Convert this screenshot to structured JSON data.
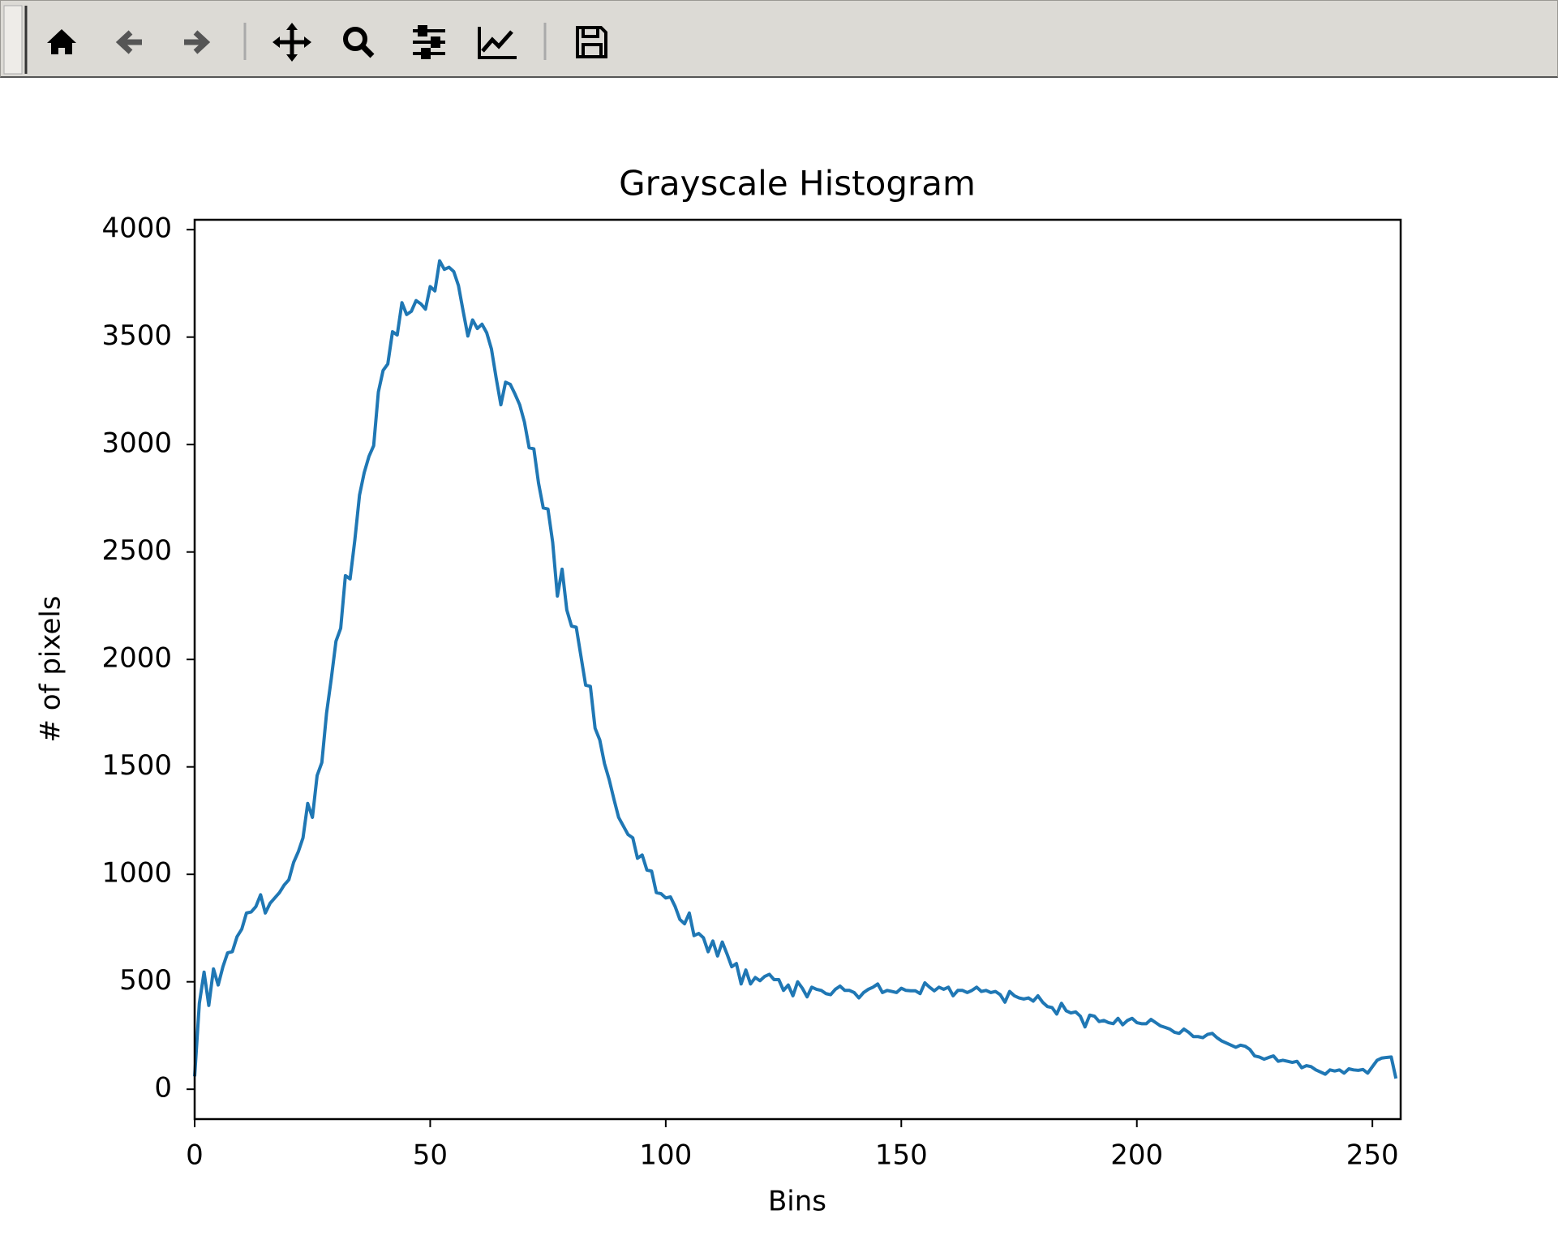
{
  "chart_data": {
    "type": "line",
    "title": "Grayscale Histogram",
    "xlabel": "Bins",
    "ylabel": "# of pixels",
    "color": "#1f77b4",
    "x": [
      0,
      1,
      2,
      3,
      4,
      5,
      6,
      7,
      8,
      9,
      10,
      11,
      12,
      13,
      14,
      15,
      16,
      17,
      18,
      19,
      20,
      21,
      22,
      23,
      24,
      25,
      26,
      27,
      28,
      29,
      30,
      31,
      32,
      33,
      34,
      35,
      36,
      37,
      38,
      39,
      40,
      41,
      42,
      43,
      44,
      45,
      46,
      47,
      48,
      49,
      50,
      51,
      52,
      53,
      54,
      55,
      56,
      57,
      58,
      59,
      60,
      61,
      62,
      63,
      64,
      65,
      66,
      67,
      68,
      69,
      70,
      71,
      72,
      73,
      74,
      75,
      76,
      77,
      78,
      79,
      80,
      81,
      82,
      83,
      84,
      85,
      86,
      87,
      88,
      89,
      90,
      91,
      92,
      93,
      94,
      95,
      96,
      97,
      98,
      99,
      100,
      101,
      102,
      103,
      104,
      105,
      106,
      107,
      108,
      109,
      110,
      111,
      112,
      113,
      114,
      115,
      116,
      117,
      118,
      119,
      120,
      121,
      122,
      123,
      124,
      125,
      126,
      127,
      128,
      129,
      130,
      131,
      132,
      133,
      134,
      135,
      136,
      137,
      138,
      139,
      140,
      141,
      142,
      143,
      144,
      145,
      146,
      147,
      148,
      149,
      150,
      151,
      152,
      153,
      154,
      155,
      156,
      157,
      158,
      159,
      160,
      161,
      162,
      163,
      164,
      165,
      166,
      167,
      168,
      169,
      170,
      171,
      172,
      173,
      174,
      175,
      176,
      177,
      178,
      179,
      180,
      181,
      182,
      183,
      184,
      185,
      186,
      187,
      188,
      189,
      190,
      191,
      192,
      193,
      194,
      195,
      196,
      197,
      198,
      199,
      200,
      201,
      202,
      203,
      204,
      205,
      206,
      207,
      208,
      209,
      210,
      211,
      212,
      213,
      214,
      215,
      216,
      217,
      218,
      219,
      220,
      221,
      222,
      223,
      224,
      225,
      226,
      227,
      228,
      229,
      230,
      231,
      232,
      233,
      234,
      235,
      236,
      237,
      238,
      239,
      240,
      241,
      242,
      243,
      244,
      245,
      246,
      247,
      248,
      249,
      250,
      251,
      252,
      253,
      254,
      255
    ],
    "values": [
      60,
      400,
      545,
      390,
      560,
      485,
      570,
      635,
      640,
      710,
      745,
      820,
      825,
      850,
      905,
      820,
      865,
      890,
      915,
      950,
      975,
      1055,
      1105,
      1170,
      1330,
      1265,
      1460,
      1520,
      1750,
      1910,
      2085,
      2145,
      2390,
      2375,
      2555,
      2765,
      2870,
      2945,
      2995,
      3245,
      3345,
      3375,
      3525,
      3510,
      3660,
      3605,
      3620,
      3670,
      3655,
      3630,
      3735,
      3715,
      3855,
      3815,
      3825,
      3805,
      3740,
      3620,
      3505,
      3580,
      3540,
      3560,
      3520,
      3445,
      3310,
      3185,
      3290,
      3280,
      3235,
      3185,
      3105,
      2985,
      2980,
      2820,
      2705,
      2700,
      2545,
      2295,
      2420,
      2230,
      2155,
      2150,
      2015,
      1880,
      1875,
      1680,
      1625,
      1515,
      1440,
      1350,
      1265,
      1225,
      1185,
      1170,
      1075,
      1090,
      1020,
      1015,
      915,
      910,
      890,
      895,
      850,
      790,
      770,
      820,
      715,
      725,
      705,
      640,
      690,
      620,
      685,
      630,
      570,
      585,
      490,
      555,
      490,
      520,
      505,
      525,
      535,
      510,
      510,
      460,
      485,
      435,
      500,
      470,
      430,
      475,
      465,
      460,
      445,
      440,
      465,
      480,
      460,
      460,
      450,
      425,
      450,
      465,
      475,
      490,
      450,
      460,
      455,
      450,
      470,
      460,
      458,
      458,
      445,
      495,
      475,
      458,
      475,
      465,
      475,
      435,
      460,
      460,
      450,
      460,
      475,
      455,
      460,
      450,
      455,
      440,
      405,
      455,
      435,
      425,
      420,
      425,
      410,
      435,
      405,
      385,
      380,
      350,
      400,
      365,
      355,
      360,
      340,
      290,
      345,
      340,
      315,
      320,
      310,
      305,
      330,
      300,
      320,
      330,
      310,
      305,
      305,
      325,
      310,
      295,
      288,
      280,
      265,
      260,
      280,
      265,
      245,
      245,
      240,
      255,
      260,
      240,
      225,
      215,
      205,
      195,
      205,
      200,
      185,
      155,
      150,
      140,
      148,
      155,
      130,
      135,
      130,
      125,
      130,
      100,
      110,
      105,
      90,
      80,
      70,
      90,
      85,
      90,
      75,
      95,
      90,
      88,
      92,
      75,
      105,
      135,
      145,
      148,
      150,
      50
    ],
    "xlim": [
      0,
      256
    ],
    "ylim": [
      -139,
      4046
    ],
    "xticks": [
      0,
      50,
      100,
      150,
      200,
      250
    ],
    "yticks": [
      0,
      500,
      1000,
      1500,
      2000,
      2500,
      3000,
      3500,
      4000
    ]
  }
}
